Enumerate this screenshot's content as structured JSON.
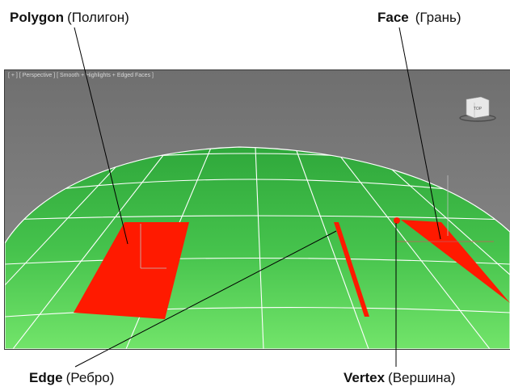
{
  "labels": {
    "polygon": {
      "en": "Polygon",
      "ru": "(Полигон)"
    },
    "face": {
      "en": "Face",
      "ru": "(Грань)"
    },
    "edge": {
      "en": "Edge",
      "ru": "(Ребро)"
    },
    "vertex": {
      "en": "Vertex",
      "ru": "(Вершина)"
    }
  },
  "viewport": {
    "caption": "[ + ] [ Perspective ] [ Smooth + Highlights + Edged Faces ]",
    "viewcube_label": "TOP"
  },
  "colors": {
    "viewport_background": "#7d7d7d",
    "mesh_green": "#3ec04a",
    "mesh_green_light": "#6fe06a",
    "wire": "#ffffff",
    "selection": "#ff1a00",
    "leader": "#000000"
  },
  "icons": {
    "viewcube": "cube-icon"
  }
}
